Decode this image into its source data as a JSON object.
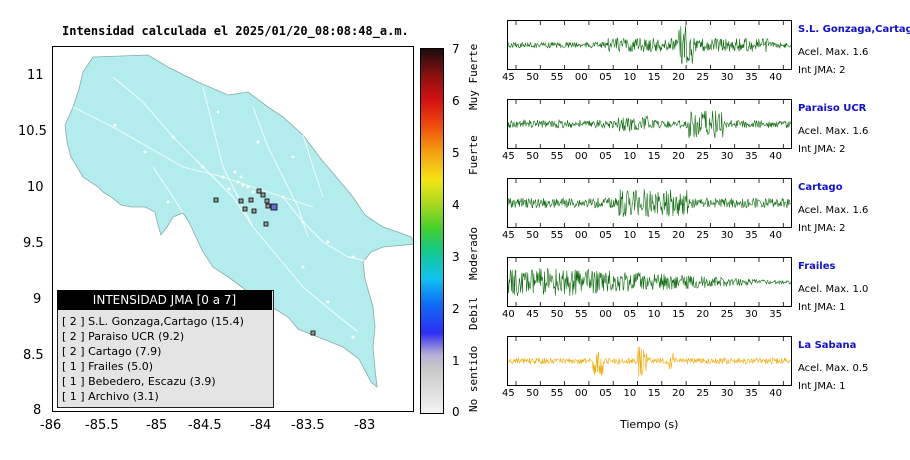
{
  "title": "Intensidad calculada el 2025/01/20_08:08:48_a.m.",
  "map": {
    "y_ticks": [
      "11",
      "10.5",
      "10",
      "9.5",
      "9",
      "8.5",
      "8"
    ],
    "x_ticks": [
      "-86",
      "-85.5",
      "-85",
      "-84.5",
      "-84",
      "-83.5",
      "-83"
    ],
    "colors": {
      "land": "#b3ecec",
      "sea": "#ffffff"
    }
  },
  "colorbar": {
    "numbers": [
      "7",
      "6",
      "5",
      "4",
      "3",
      "2",
      "1",
      "0"
    ],
    "labels": [
      "Muy Fuerte",
      "Fuerte",
      "Moderado",
      "Debil",
      "No sentido"
    ]
  },
  "legend": {
    "title": "INTENSIDAD JMA [0 a 7]",
    "items": [
      "[ 2 ]  S.L. Gonzaga,Cartago (15.4)",
      "[ 2 ]  Paraiso UCR (9.2)",
      "[ 2 ]  Cartago (7.9)",
      "[ 1 ]  Frailes (5.0)",
      "[ 1 ]  Bebedero, Escazu (3.9)",
      "[ 1 ]  Archivo (3.1)"
    ]
  },
  "stations": [
    {
      "name": "S.L. Gonzaga,Cartago",
      "acel": "Acel. Max. 1.6",
      "int": "Int JMA: 2",
      "ticks": [
        "45",
        "50",
        "55",
        "00",
        "05",
        "10",
        "15",
        "20",
        "25",
        "30",
        "35",
        "40"
      ],
      "color": "#0a6a0a"
    },
    {
      "name": "Paraiso UCR",
      "acel": "Acel. Max. 1.6",
      "int": "Int JMA: 2",
      "ticks": [
        "45",
        "50",
        "55",
        "00",
        "05",
        "10",
        "15",
        "20",
        "25",
        "30",
        "35",
        "40"
      ],
      "color": "#0a6a0a"
    },
    {
      "name": "Cartago",
      "acel": "Acel. Max. 1.6",
      "int": "Int JMA: 2",
      "ticks": [
        "45",
        "50",
        "55",
        "00",
        "05",
        "10",
        "15",
        "20",
        "25",
        "30",
        "35",
        "40"
      ],
      "color": "#0a6a0a"
    },
    {
      "name": "Frailes",
      "acel": "Acel. Max. 1.0",
      "int": "Int JMA: 1",
      "ticks": [
        "40",
        "45",
        "50",
        "55",
        "00",
        "05",
        "10",
        "15",
        "20",
        "25",
        "30",
        "35"
      ],
      "color": "#0a6a0a"
    },
    {
      "name": "La Sabana",
      "acel": "Acel. Max. 0.5",
      "int": "Int JMA: 1",
      "ticks": [
        "45",
        "50",
        "55",
        "00",
        "05",
        "10",
        "15",
        "20",
        "25",
        "30",
        "35",
        "40"
      ],
      "color": "#f2a800"
    }
  ],
  "xlabel": "Tiempo (s)"
}
